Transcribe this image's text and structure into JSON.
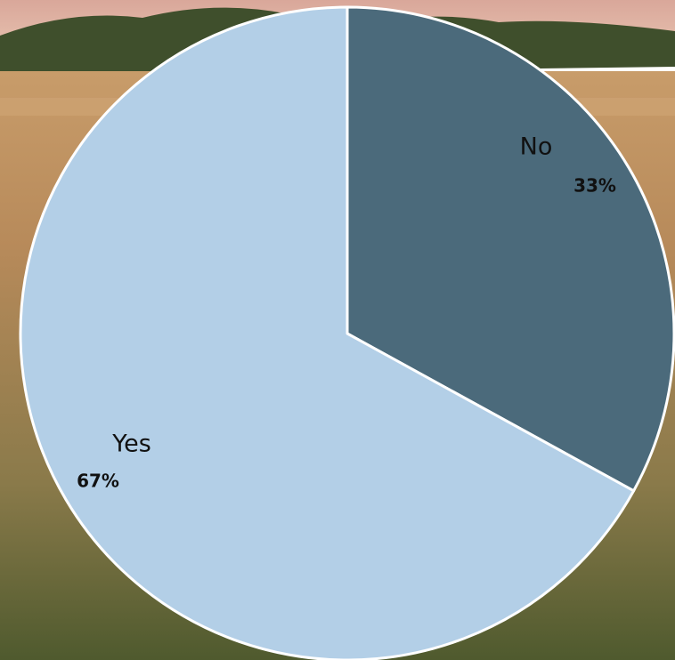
{
  "chart_data": {
    "type": "pie",
    "categories": [
      "No",
      "Yes"
    ],
    "values": [
      33,
      67
    ],
    "value_labels": [
      "33%",
      "67%"
    ],
    "colors": [
      "#4b6a7b",
      "#b3cfe7"
    ]
  }
}
